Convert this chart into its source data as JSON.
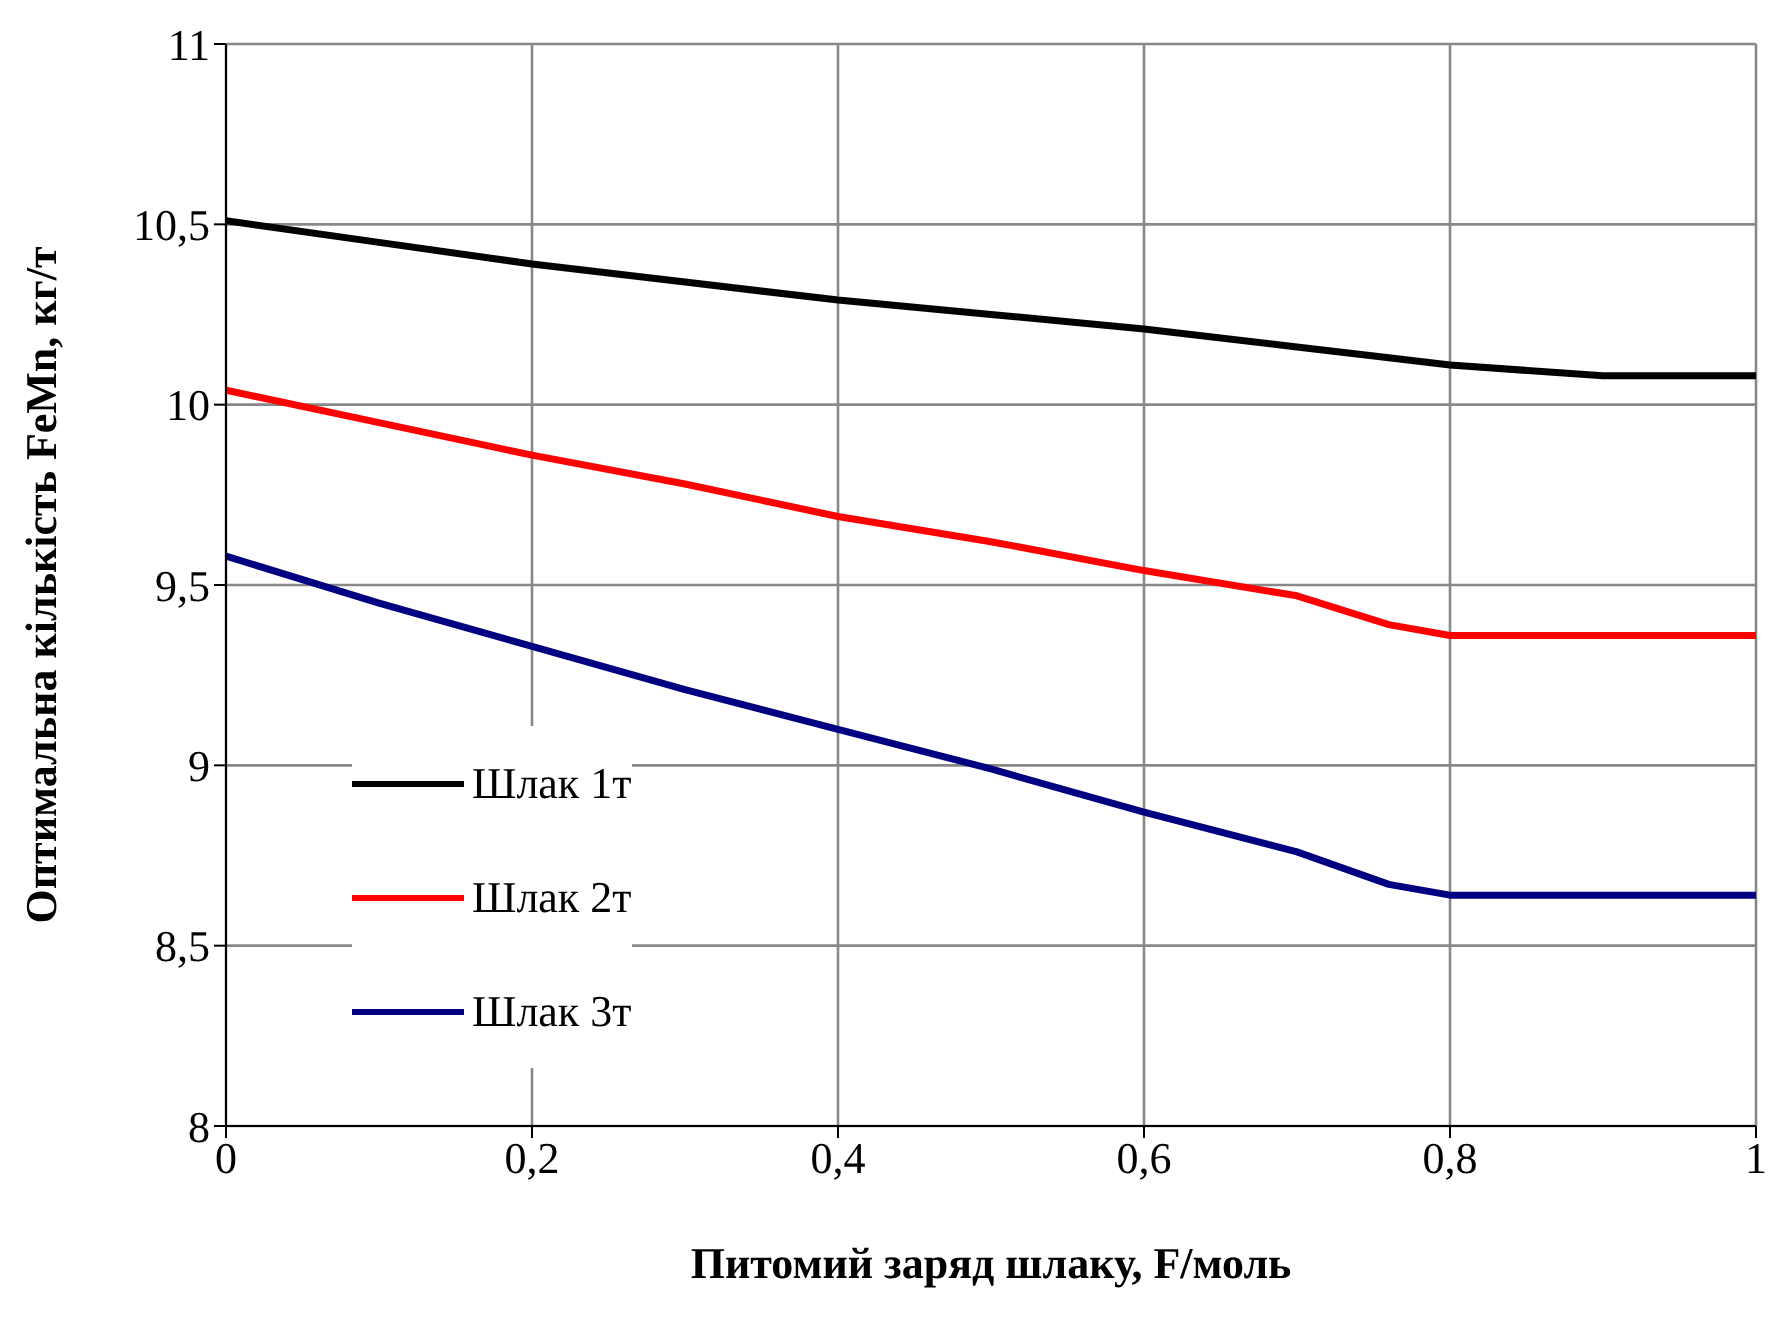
{
  "chart_data": {
    "type": "line",
    "xlabel": "Питомий заряд шлаку, F/моль",
    "ylabel": "Оптимальна кількість FeMn, кг/т",
    "x": [
      0,
      0.1,
      0.2,
      0.3,
      0.4,
      0.5,
      0.6,
      0.7,
      0.76,
      0.8,
      0.9,
      1.0
    ],
    "series": [
      {
        "name": "Шлак 1т",
        "color": "#000000",
        "values": [
          10.51,
          10.45,
          10.39,
          10.34,
          10.29,
          10.25,
          10.21,
          10.16,
          10.13,
          10.11,
          10.08,
          10.08
        ]
      },
      {
        "name": "Шлак 2т",
        "color": "#ff0000",
        "values": [
          10.04,
          9.95,
          9.86,
          9.78,
          9.69,
          9.62,
          9.54,
          9.47,
          9.39,
          9.36,
          9.36,
          9.36
        ]
      },
      {
        "name": "Шлак 3т",
        "color": "#000080",
        "values": [
          9.58,
          9.45,
          9.33,
          9.21,
          9.1,
          8.99,
          8.87,
          8.76,
          8.67,
          8.64,
          8.64,
          8.64
        ]
      }
    ],
    "xlim": [
      0,
      1
    ],
    "xticks": [
      0,
      {
        "value": 0.2,
        "label": "0,2"
      },
      {
        "value": 0.4,
        "label": "0,4"
      },
      {
        "value": 0.6,
        "label": "0,6"
      },
      {
        "value": 0.8,
        "label": "0,8"
      },
      1
    ],
    "ylim": [
      8,
      11
    ],
    "yticks": [
      8,
      {
        "value": 8.5,
        "label": "8,5"
      },
      9,
      {
        "value": 9.5,
        "label": "9,5"
      },
      10,
      {
        "value": 10.5,
        "label": "10,5"
      },
      11
    ],
    "grid": true,
    "legend": "left",
    "marker": "none",
    "line_style": "solid"
  }
}
